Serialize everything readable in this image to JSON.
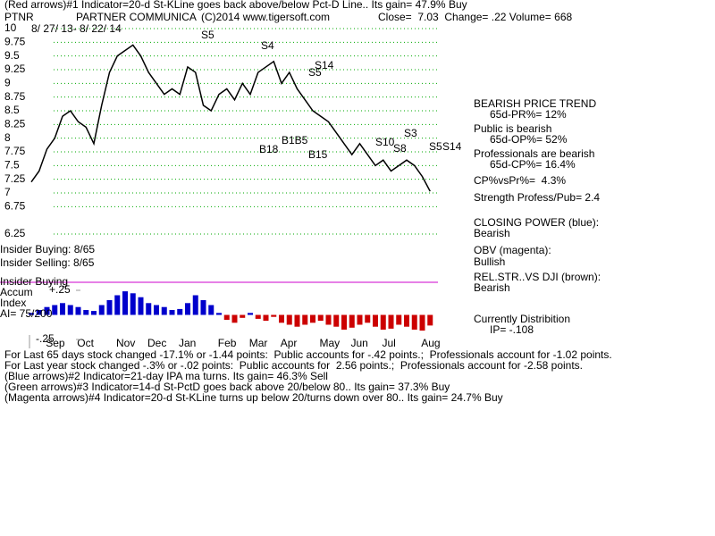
{
  "chart_data": {
    "type": "line",
    "header": "(Red arrows)#1 Indicator=20-d St-KLine goes back above/below Pct-D Line.. Its gain= 47.9% Buy",
    "ticker": "PTNR",
    "title": "PARTNER COMMUNICA",
    "copyright": "(C)2014 www.tigersoft.com",
    "quote": "Close=  7.03  Change= .22 Volume= 668",
    "date_range": "8/ 27/ 13- 8/ 22/ 14",
    "color": "#000000",
    "grid": true,
    "categories": [
      null,
      null,
      null,
      "Sep",
      null,
      null,
      null,
      "Oct",
      null,
      null,
      null,
      null,
      "Nov",
      null,
      null,
      null,
      "Dec",
      null,
      null,
      null,
      "Jan",
      null,
      null,
      null,
      null,
      "Feb",
      null,
      null,
      null,
      "Mar",
      null,
      null,
      null,
      "Apr",
      null,
      null,
      null,
      null,
      "May",
      null,
      null,
      null,
      "Jun",
      null,
      null,
      null,
      "Jul",
      null,
      null,
      null,
      null,
      "Aug"
    ],
    "values": [
      7.2,
      7.4,
      7.8,
      8.0,
      8.4,
      8.5,
      8.3,
      8.2,
      7.9,
      8.6,
      9.2,
      9.5,
      9.6,
      9.7,
      9.5,
      9.2,
      9.0,
      8.8,
      8.9,
      8.8,
      9.3,
      9.2,
      8.6,
      8.5,
      8.8,
      8.9,
      8.7,
      9.0,
      8.8,
      9.2,
      9.3,
      9.4,
      9.0,
      9.2,
      8.9,
      8.7,
      8.5,
      8.4,
      8.3,
      8.1,
      7.9,
      7.7,
      7.9,
      7.7,
      7.5,
      7.6,
      7.4,
      7.5,
      7.6,
      7.5,
      7.3,
      7.03
    ],
    "ylim": [
      6.25,
      10
    ],
    "yticks": [
      10,
      9.75,
      9.5,
      9.25,
      9,
      8.75,
      8.5,
      8.25,
      8,
      7.75,
      7.5,
      7.25,
      7,
      6.75,
      6.25
    ],
    "annotations": [
      "S5",
      "S4",
      "S14",
      "S5",
      "B18",
      "B1B5",
      "B15",
      "S10",
      "S8",
      "S3",
      "S5",
      "S14"
    ],
    "accumulation": {
      "values": [
        0.02,
        0.05,
        0.08,
        0.1,
        0.12,
        0.1,
        0.08,
        0.05,
        0.04,
        0.1,
        0.15,
        0.2,
        0.24,
        0.22,
        0.18,
        0.12,
        0.1,
        0.08,
        0.05,
        0.06,
        0.12,
        0.2,
        0.15,
        0.1,
        0.02,
        -0.05,
        -0.08,
        -0.03,
        0.02,
        -0.04,
        -0.06,
        -0.02,
        -0.08,
        -0.1,
        -0.12,
        -0.1,
        -0.08,
        -0.06,
        -0.1,
        -0.12,
        -0.15,
        -0.13,
        -0.1,
        -0.08,
        -0.12,
        -0.15,
        -0.14,
        -0.1,
        -0.12,
        -0.15,
        -0.16,
        -0.108
      ],
      "ylim": [
        -0.25,
        0.25
      ],
      "yticks": [
        {
          "value": 0.25,
          "label": "+.25"
        },
        {
          "value": -0.25,
          "label": "-.25"
        }
      ],
      "colors": {
        "positive": "#0000cc",
        "negative": "#cc0000"
      }
    },
    "panel_labels": [
      "Insider Buying: 8/65",
      "Insider Selling: 8/65",
      "Insider Buying",
      "Accum",
      "Index",
      "AI= 75/200"
    ],
    "side_notes": [
      "BEARISH PRICE TREND",
      "65d-PR%= 12%",
      "Public is bearish",
      "65d-OP%= 52%",
      "Professionals are bearish",
      "65d-CP%= 16.4%",
      "CP%vsPr%=  4.3%",
      "Strength Profess/Pub= 2.4",
      "CLOSING POWER (blue):",
      "Bearish",
      "OBV (magenta):",
      "Bullish",
      "REL.STR..VS DJI (brown):",
      "Bearish",
      "Currently Distribition",
      "IP= -.108"
    ],
    "footer": [
      "For Last 65 days stock changed -17.1% or -1.44 points:  Public accounts for -.42 points.;  Professionals account for -1.02 points.",
      "For Last year stock changed -.3% or -.02 points:  Public accounts for  2.56 points.;  Professionals account for -2.58 points.",
      "(Blue arrows)#2 Indicator=21-day IPA ma turns. Its gain= 46.3% Sell",
      "(Green arrows)#3 Indicator=14-d St-PctD goes back above 20/below 80.. Its gain= 37.3% Buy",
      "(Magenta arrows)#4 Indicator=20-d St-KLine turns up below 20/turns down over 80.. Its gain= 24.7% Buy"
    ]
  }
}
